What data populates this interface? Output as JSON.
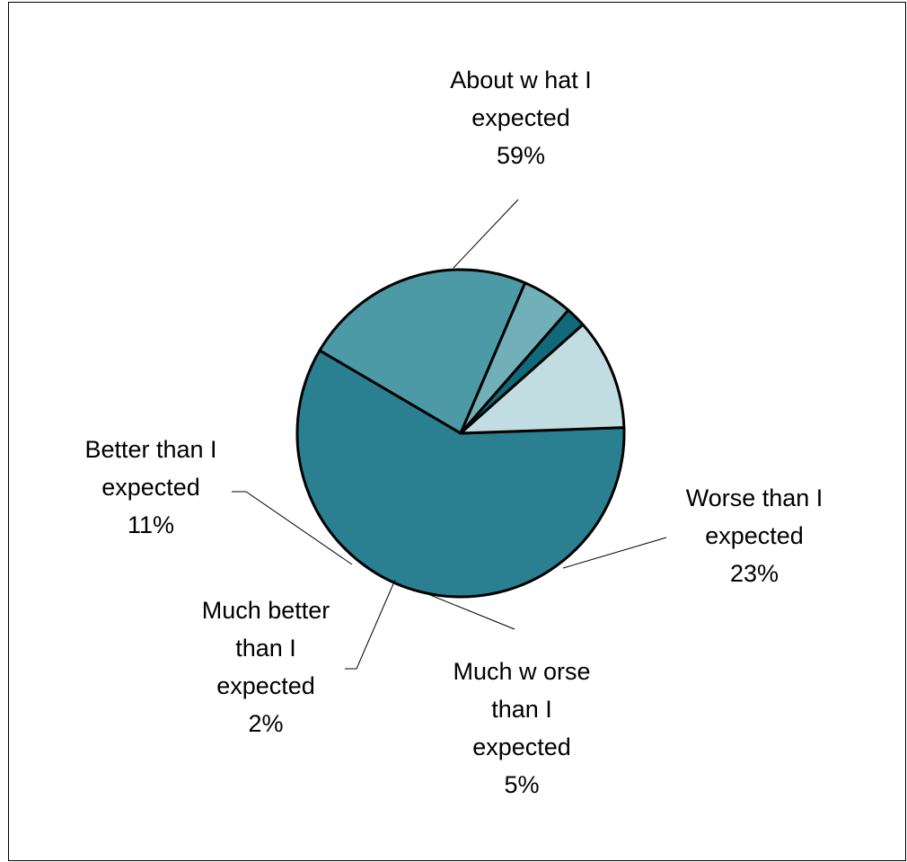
{
  "chart_data": {
    "type": "pie",
    "title": "",
    "start_angle_deg": -2,
    "direction": "clockwise",
    "legend": "none",
    "slices": [
      {
        "label": "About what I expected",
        "label_lines": [
          "About w hat I",
          "expected"
        ],
        "value": 59,
        "value_label": "59%",
        "color": "#2A8090"
      },
      {
        "label": "Worse than I expected",
        "label_lines": [
          "Worse than I",
          "expected"
        ],
        "value": 23,
        "value_label": "23%",
        "color": "#4B9AA6"
      },
      {
        "label": "Much worse than I expected",
        "label_lines": [
          "Much w orse",
          "than I",
          "expected"
        ],
        "value": 5,
        "value_label": "5%",
        "color": "#72B0B9"
      },
      {
        "label": "Much better than I expected",
        "label_lines": [
          "Much better",
          "than I",
          "expected"
        ],
        "value": 2,
        "value_label": "2%",
        "color": "#106A7A"
      },
      {
        "label": "Better than I expected",
        "label_lines": [
          "Better than I",
          "expected"
        ],
        "value": 11,
        "value_label": "11%",
        "color": "#C2DDE1"
      }
    ]
  }
}
